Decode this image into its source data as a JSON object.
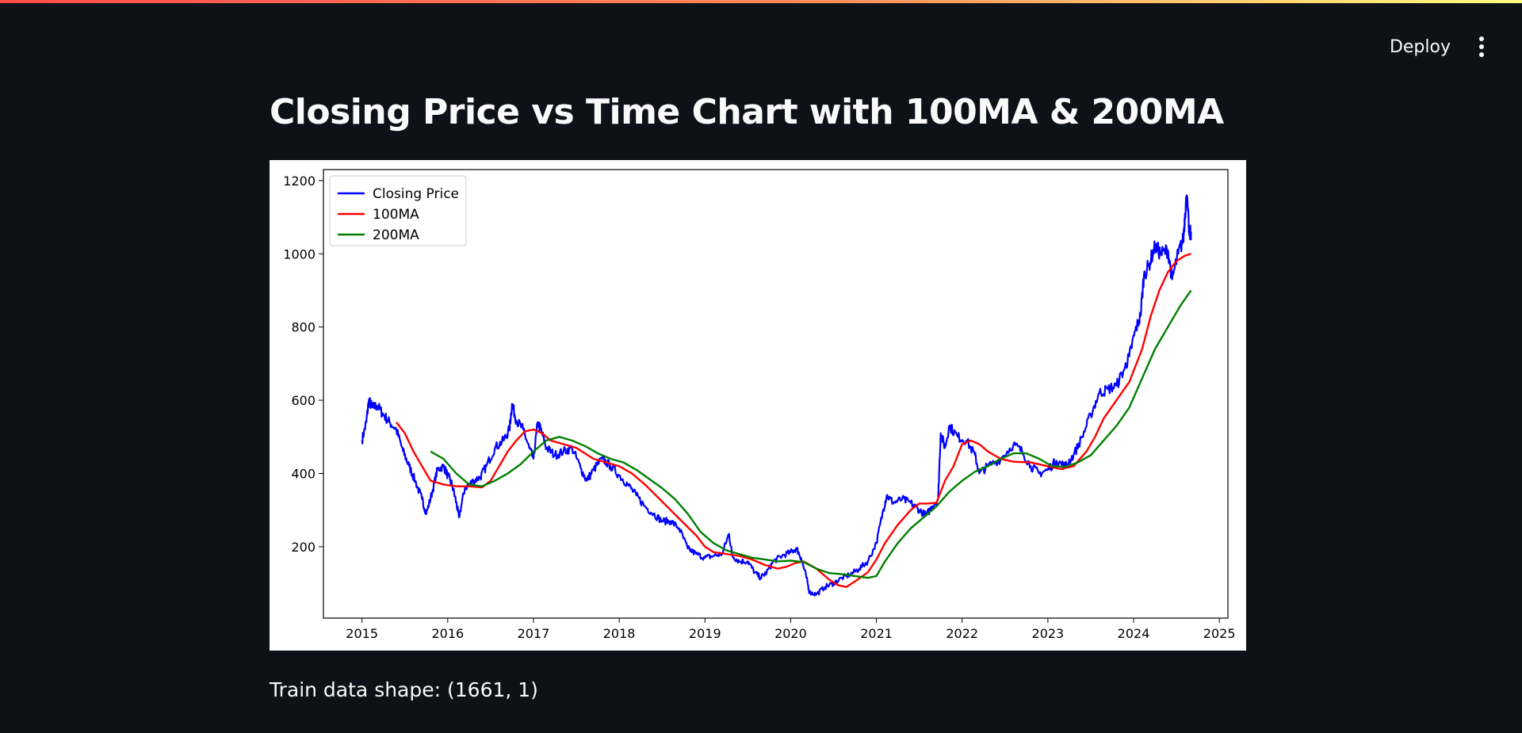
{
  "header": {
    "deploy_label": "Deploy",
    "menu_icon": "kebab-menu-icon"
  },
  "page": {
    "title": "Closing Price vs Time Chart with 100MA & 200MA",
    "train_shape_text": "Train data shape: (1661, 1)"
  },
  "chart_data": {
    "type": "line",
    "title": "",
    "xlabel": "",
    "ylabel": "",
    "xlim": [
      2014.55,
      2025.1
    ],
    "ylim": [
      5,
      1230
    ],
    "x_ticks": [
      "2015",
      "2016",
      "2017",
      "2018",
      "2019",
      "2020",
      "2021",
      "2022",
      "2023",
      "2024",
      "2025"
    ],
    "y_ticks": [
      200,
      400,
      600,
      800,
      1000,
      1200
    ],
    "grid": false,
    "legend": "top-left",
    "series": [
      {
        "name": "Closing Price",
        "color": "#0000ff",
        "jitter": 1,
        "points": [
          [
            2015.0,
            490
          ],
          [
            2015.05,
            540
          ],
          [
            2015.08,
            600
          ],
          [
            2015.12,
            580
          ],
          [
            2015.18,
            585
          ],
          [
            2015.25,
            560
          ],
          [
            2015.32,
            540
          ],
          [
            2015.4,
            520
          ],
          [
            2015.48,
            460
          ],
          [
            2015.55,
            420
          ],
          [
            2015.62,
            380
          ],
          [
            2015.7,
            330
          ],
          [
            2015.75,
            290
          ],
          [
            2015.82,
            350
          ],
          [
            2015.88,
            410
          ],
          [
            2015.95,
            420
          ],
          [
            2016.0,
            395
          ],
          [
            2016.05,
            370
          ],
          [
            2016.1,
            320
          ],
          [
            2016.13,
            280
          ],
          [
            2016.2,
            360
          ],
          [
            2016.3,
            380
          ],
          [
            2016.38,
            390
          ],
          [
            2016.45,
            420
          ],
          [
            2016.55,
            470
          ],
          [
            2016.65,
            490
          ],
          [
            2016.72,
            520
          ],
          [
            2016.75,
            590
          ],
          [
            2016.8,
            545
          ],
          [
            2016.88,
            520
          ],
          [
            2016.95,
            470
          ],
          [
            2017.0,
            440
          ],
          [
            2017.05,
            540
          ],
          [
            2017.1,
            510
          ],
          [
            2017.15,
            470
          ],
          [
            2017.25,
            450
          ],
          [
            2017.35,
            460
          ],
          [
            2017.45,
            470
          ],
          [
            2017.55,
            415
          ],
          [
            2017.62,
            380
          ],
          [
            2017.7,
            410
          ],
          [
            2017.8,
            440
          ],
          [
            2017.9,
            420
          ],
          [
            2018.0,
            395
          ],
          [
            2018.1,
            370
          ],
          [
            2018.2,
            340
          ],
          [
            2018.3,
            310
          ],
          [
            2018.4,
            290
          ],
          [
            2018.5,
            270
          ],
          [
            2018.6,
            270
          ],
          [
            2018.7,
            250
          ],
          [
            2018.8,
            195
          ],
          [
            2018.9,
            180
          ],
          [
            2019.0,
            170
          ],
          [
            2019.1,
            175
          ],
          [
            2019.2,
            180
          ],
          [
            2019.28,
            235
          ],
          [
            2019.32,
            175
          ],
          [
            2019.4,
            160
          ],
          [
            2019.5,
            160
          ],
          [
            2019.58,
            130
          ],
          [
            2019.65,
            115
          ],
          [
            2019.72,
            130
          ],
          [
            2019.8,
            160
          ],
          [
            2019.9,
            175
          ],
          [
            2020.0,
            185
          ],
          [
            2020.07,
            195
          ],
          [
            2020.12,
            170
          ],
          [
            2020.18,
            120
          ],
          [
            2020.22,
            75
          ],
          [
            2020.3,
            70
          ],
          [
            2020.4,
            90
          ],
          [
            2020.5,
            100
          ],
          [
            2020.6,
            115
          ],
          [
            2020.7,
            125
          ],
          [
            2020.8,
            140
          ],
          [
            2020.9,
            160
          ],
          [
            2021.0,
            210
          ],
          [
            2021.08,
            300
          ],
          [
            2021.12,
            340
          ],
          [
            2021.2,
            320
          ],
          [
            2021.3,
            330
          ],
          [
            2021.4,
            320
          ],
          [
            2021.5,
            300
          ],
          [
            2021.58,
            285
          ],
          [
            2021.65,
            310
          ],
          [
            2021.72,
            330
          ],
          [
            2021.75,
            510
          ],
          [
            2021.8,
            470
          ],
          [
            2021.85,
            530
          ],
          [
            2021.95,
            500
          ],
          [
            2022.05,
            490
          ],
          [
            2022.15,
            450
          ],
          [
            2022.2,
            400
          ],
          [
            2022.3,
            420
          ],
          [
            2022.45,
            440
          ],
          [
            2022.6,
            480
          ],
          [
            2022.7,
            460
          ],
          [
            2022.8,
            420
          ],
          [
            2022.9,
            400
          ],
          [
            2023.0,
            410
          ],
          [
            2023.1,
            435
          ],
          [
            2023.2,
            420
          ],
          [
            2023.3,
            450
          ],
          [
            2023.4,
            500
          ],
          [
            2023.5,
            560
          ],
          [
            2023.6,
            620
          ],
          [
            2023.7,
            630
          ],
          [
            2023.8,
            640
          ],
          [
            2023.9,
            690
          ],
          [
            2023.95,
            720
          ],
          [
            2024.02,
            790
          ],
          [
            2024.08,
            830
          ],
          [
            2024.12,
            940
          ],
          [
            2024.18,
            970
          ],
          [
            2024.25,
            1020
          ],
          [
            2024.32,
            1000
          ],
          [
            2024.4,
            1010
          ],
          [
            2024.45,
            930
          ],
          [
            2024.52,
            1000
          ],
          [
            2024.58,
            1040
          ],
          [
            2024.6,
            1110
          ],
          [
            2024.62,
            1160
          ],
          [
            2024.65,
            1050
          ],
          [
            2024.67,
            1060
          ]
        ]
      },
      {
        "name": "100MA",
        "color": "#ff0000",
        "jitter": 0,
        "points": [
          [
            2015.4,
            540
          ],
          [
            2015.5,
            510
          ],
          [
            2015.6,
            460
          ],
          [
            2015.7,
            420
          ],
          [
            2015.8,
            380
          ],
          [
            2015.95,
            370
          ],
          [
            2016.1,
            365
          ],
          [
            2016.25,
            365
          ],
          [
            2016.4,
            362
          ],
          [
            2016.5,
            380
          ],
          [
            2016.6,
            420
          ],
          [
            2016.7,
            460
          ],
          [
            2016.8,
            490
          ],
          [
            2016.9,
            515
          ],
          [
            2017.0,
            520
          ],
          [
            2017.1,
            510
          ],
          [
            2017.2,
            490
          ],
          [
            2017.35,
            480
          ],
          [
            2017.5,
            470
          ],
          [
            2017.6,
            455
          ],
          [
            2017.7,
            440
          ],
          [
            2017.85,
            430
          ],
          [
            2018.0,
            420
          ],
          [
            2018.15,
            400
          ],
          [
            2018.3,
            370
          ],
          [
            2018.45,
            335
          ],
          [
            2018.6,
            300
          ],
          [
            2018.75,
            265
          ],
          [
            2018.9,
            230
          ],
          [
            2019.0,
            200
          ],
          [
            2019.1,
            185
          ],
          [
            2019.25,
            180
          ],
          [
            2019.4,
            175
          ],
          [
            2019.55,
            165
          ],
          [
            2019.7,
            150
          ],
          [
            2019.85,
            140
          ],
          [
            2019.95,
            145
          ],
          [
            2020.05,
            155
          ],
          [
            2020.15,
            160
          ],
          [
            2020.3,
            140
          ],
          [
            2020.45,
            110
          ],
          [
            2020.55,
            95
          ],
          [
            2020.65,
            90
          ],
          [
            2020.75,
            105
          ],
          [
            2020.9,
            130
          ],
          [
            2021.0,
            165
          ],
          [
            2021.1,
            210
          ],
          [
            2021.25,
            260
          ],
          [
            2021.4,
            300
          ],
          [
            2021.5,
            318
          ],
          [
            2021.6,
            318
          ],
          [
            2021.7,
            320
          ],
          [
            2021.8,
            380
          ],
          [
            2021.9,
            420
          ],
          [
            2022.0,
            480
          ],
          [
            2022.1,
            490
          ],
          [
            2022.2,
            480
          ],
          [
            2022.3,
            460
          ],
          [
            2022.45,
            440
          ],
          [
            2022.6,
            432
          ],
          [
            2022.8,
            430
          ],
          [
            2023.0,
            420
          ],
          [
            2023.15,
            412
          ],
          [
            2023.3,
            420
          ],
          [
            2023.45,
            460
          ],
          [
            2023.55,
            500
          ],
          [
            2023.65,
            550
          ],
          [
            2023.8,
            600
          ],
          [
            2023.95,
            650
          ],
          [
            2024.1,
            740
          ],
          [
            2024.2,
            830
          ],
          [
            2024.3,
            900
          ],
          [
            2024.4,
            950
          ],
          [
            2024.5,
            980
          ],
          [
            2024.6,
            995
          ],
          [
            2024.67,
            1000
          ]
        ]
      },
      {
        "name": "200MA",
        "color": "#008000",
        "jitter": 0,
        "points": [
          [
            2015.8,
            460
          ],
          [
            2015.95,
            440
          ],
          [
            2016.1,
            400
          ],
          [
            2016.25,
            370
          ],
          [
            2016.4,
            365
          ],
          [
            2016.55,
            380
          ],
          [
            2016.7,
            400
          ],
          [
            2016.85,
            425
          ],
          [
            2017.0,
            460
          ],
          [
            2017.15,
            490
          ],
          [
            2017.3,
            500
          ],
          [
            2017.45,
            490
          ],
          [
            2017.6,
            475
          ],
          [
            2017.75,
            455
          ],
          [
            2017.9,
            440
          ],
          [
            2018.05,
            430
          ],
          [
            2018.2,
            410
          ],
          [
            2018.35,
            385
          ],
          [
            2018.5,
            360
          ],
          [
            2018.65,
            330
          ],
          [
            2018.8,
            290
          ],
          [
            2018.95,
            240
          ],
          [
            2019.1,
            210
          ],
          [
            2019.25,
            190
          ],
          [
            2019.4,
            180
          ],
          [
            2019.55,
            170
          ],
          [
            2019.7,
            165
          ],
          [
            2019.85,
            160
          ],
          [
            2020.0,
            162
          ],
          [
            2020.15,
            158
          ],
          [
            2020.3,
            140
          ],
          [
            2020.45,
            128
          ],
          [
            2020.6,
            125
          ],
          [
            2020.75,
            120
          ],
          [
            2020.9,
            115
          ],
          [
            2021.0,
            120
          ],
          [
            2021.1,
            160
          ],
          [
            2021.25,
            210
          ],
          [
            2021.4,
            250
          ],
          [
            2021.55,
            280
          ],
          [
            2021.7,
            310
          ],
          [
            2021.85,
            350
          ],
          [
            2022.0,
            380
          ],
          [
            2022.15,
            405
          ],
          [
            2022.3,
            420
          ],
          [
            2022.45,
            440
          ],
          [
            2022.6,
            455
          ],
          [
            2022.75,
            455
          ],
          [
            2022.9,
            440
          ],
          [
            2023.05,
            420
          ],
          [
            2023.2,
            418
          ],
          [
            2023.35,
            430
          ],
          [
            2023.5,
            450
          ],
          [
            2023.65,
            490
          ],
          [
            2023.8,
            530
          ],
          [
            2023.95,
            580
          ],
          [
            2024.1,
            660
          ],
          [
            2024.25,
            740
          ],
          [
            2024.4,
            800
          ],
          [
            2024.55,
            860
          ],
          [
            2024.67,
            900
          ]
        ]
      }
    ]
  }
}
